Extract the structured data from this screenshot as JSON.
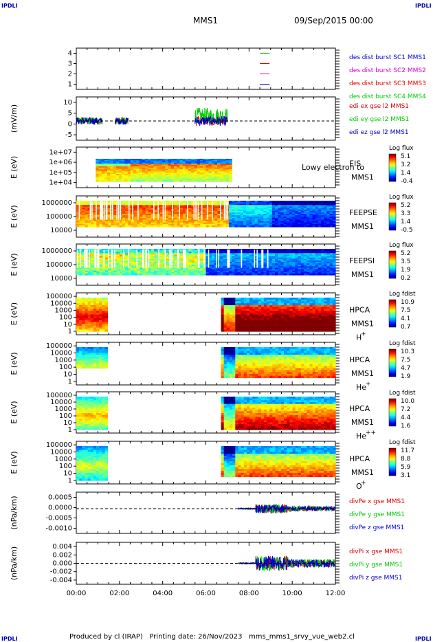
{
  "header": {
    "corner_left": "IPDLI",
    "corner_right": "IPDLI",
    "title": "MMS1",
    "date": "09/Sep/2015 00:00"
  },
  "footer": {
    "corner_left": "IPDLI",
    "corner_right": "IPDLI",
    "text": "Produced by cl (IRAP)   Printing date: 26/Nov/2023   mms_mms1_srvy_vue_web2.cl"
  },
  "colors": {
    "mms1": "#0000cc",
    "mms2": "#cc00cc",
    "mms3": "#dd0000",
    "mms4": "#00cc00",
    "axis": "#000000"
  },
  "chart_data": [
    {
      "type": "line",
      "panel": "des_dist_burst",
      "ylabel": "",
      "ylim": [
        0.5,
        4.5
      ],
      "yticks": [
        "1",
        "2",
        "3",
        "4"
      ],
      "series": [
        {
          "name": "des dist burst SC1 MMS1",
          "color": "#0000cc",
          "y": 1
        },
        {
          "name": "des dist burst SC2 MMS2",
          "color": "#cc00cc",
          "y": 2
        },
        {
          "name": "des dist burst SC3 MMS3",
          "color": "#dd0000",
          "y": 3
        },
        {
          "name": "des dist burst SC4 MMS4",
          "color": "#00cc00",
          "y": 4
        }
      ],
      "x_range": [
        8.5,
        8.95
      ]
    },
    {
      "type": "line",
      "panel": "edi_e_gse",
      "ylabel": "(mV/m)",
      "ylim": [
        -8,
        10
      ],
      "yticks": [
        "-5",
        "0",
        "5",
        "10"
      ],
      "series": [
        {
          "name": "edi ex gse l2 MMS1",
          "color": "#dd0000"
        },
        {
          "name": "edi ey gse l2 MMS1",
          "color": "#00cc00"
        },
        {
          "name": "edi ez gse l2 MMS1",
          "color": "#0000cc"
        }
      ],
      "intervals": [
        [
          0.0,
          1.2
        ],
        [
          1.8,
          2.4
        ],
        [
          5.5,
          7.0
        ]
      ]
    },
    {
      "type": "heatmap",
      "panel": "EIS",
      "ylabel": "E (eV)",
      "yticks": [
        "1e+04",
        "1e+05",
        "1e+06",
        "1e+07"
      ],
      "instrument": "EIS",
      "spacecraft": "MMS1",
      "overlay_text": "Lowy electron to",
      "colorbar": {
        "title": "Log flux",
        "ticks": [
          "5.1",
          "3.2",
          "1.4",
          "-0.4"
        ]
      },
      "x_range": [
        0.9,
        7.2
      ]
    },
    {
      "type": "heatmap",
      "panel": "FEEPSE",
      "ylabel": "E (eV)",
      "yticks": [
        "10000",
        "100000",
        "1000000"
      ],
      "instrument": "FEEPSE",
      "spacecraft": "MMS1",
      "colorbar": {
        "title": "Log flux",
        "ticks": [
          "5.2",
          "3.3",
          "1.4",
          "-0.5"
        ]
      },
      "x_range": [
        0.0,
        12.0
      ]
    },
    {
      "type": "heatmap",
      "panel": "FEEPSI",
      "ylabel": "E (eV)",
      "yticks": [
        "10000",
        "100000",
        "1000000"
      ],
      "instrument": "FEEPSI",
      "spacecraft": "MMS1",
      "colorbar": {
        "title": "Log flux",
        "ticks": [
          "5.2",
          "3.5",
          "1.9",
          "0.2"
        ]
      },
      "x_range": [
        0.0,
        12.0
      ]
    },
    {
      "type": "heatmap",
      "panel": "HPCA_H",
      "ylabel": "E (eV)",
      "yticks": [
        "1",
        "10",
        "100",
        "1000",
        "10000",
        "100000"
      ],
      "instrument": "HPCA",
      "spacecraft": "MMS1",
      "species": "H",
      "charge": "+",
      "colorbar": {
        "title": "Log fdist",
        "ticks": [
          "10.9",
          "7.5",
          "4.1",
          "0.7"
        ]
      },
      "intervals": [
        [
          0.0,
          1.45
        ],
        [
          6.7,
          12.0
        ]
      ]
    },
    {
      "type": "heatmap",
      "panel": "HPCA_He",
      "ylabel": "E (eV)",
      "yticks": [
        "1",
        "10",
        "100",
        "1000",
        "10000",
        "100000"
      ],
      "instrument": "HPCA",
      "spacecraft": "MMS1",
      "species": "He",
      "charge": "+",
      "colorbar": {
        "title": "Log fdist",
        "ticks": [
          "10.3",
          "7.5",
          "4.7",
          "1.9"
        ]
      },
      "intervals": [
        [
          0.0,
          1.45
        ],
        [
          6.7,
          12.0
        ]
      ]
    },
    {
      "type": "heatmap",
      "panel": "HPCA_He2",
      "ylabel": "E (eV)",
      "yticks": [
        "1",
        "10",
        "100",
        "1000",
        "10000",
        "100000"
      ],
      "instrument": "HPCA",
      "spacecraft": "MMS1",
      "species": "He",
      "charge": "++",
      "colorbar": {
        "title": "Log fdist",
        "ticks": [
          "10.0",
          "7.2",
          "4.4",
          "1.6"
        ]
      },
      "intervals": [
        [
          0.0,
          1.45
        ],
        [
          6.7,
          12.0
        ]
      ]
    },
    {
      "type": "heatmap",
      "panel": "HPCA_O",
      "ylabel": "E (eV)",
      "yticks": [
        "1",
        "10",
        "100",
        "1000",
        "10000",
        "100000"
      ],
      "instrument": "HPCA",
      "spacecraft": "MMS1",
      "species": "O",
      "charge": "+",
      "colorbar": {
        "title": "Log fdist",
        "ticks": [
          "11.7",
          "8.8",
          "5.9",
          "3.1"
        ]
      },
      "intervals": [
        [
          0.0,
          1.45
        ],
        [
          6.7,
          12.0
        ]
      ]
    },
    {
      "type": "line",
      "panel": "divPe",
      "ylabel": "(nPa/km)",
      "ylim": [
        -0.0012,
        0.0008
      ],
      "yticks": [
        "-0.0010",
        "-0.0005",
        "0.0000",
        "0.0005"
      ],
      "series": [
        {
          "name": "divPe x gse MMS1",
          "color": "#dd0000"
        },
        {
          "name": "divPe y gse MMS1",
          "color": "#00cc00"
        },
        {
          "name": "divPe z gse MMS1",
          "color": "#0000cc"
        }
      ],
      "x_range": [
        7.5,
        12.0
      ]
    },
    {
      "type": "line",
      "panel": "divPi",
      "ylabel": "(nPa/km)",
      "ylim": [
        -0.005,
        0.005
      ],
      "yticks": [
        "-0.004",
        "-0.002",
        "0.000",
        "0.002",
        "0.004"
      ],
      "series": [
        {
          "name": "divPi x gse MMS1",
          "color": "#dd0000"
        },
        {
          "name": "divPi y gse MMS1",
          "color": "#00cc00"
        },
        {
          "name": "divPi z gse MMS1",
          "color": "#0000cc"
        }
      ],
      "x_range": [
        7.5,
        12.0
      ]
    }
  ],
  "x_axis": {
    "range": [
      0,
      12
    ],
    "tick_labels": [
      "00:00",
      "02:00",
      "04:00",
      "06:00",
      "08:00",
      "10:00",
      "12:00"
    ]
  }
}
